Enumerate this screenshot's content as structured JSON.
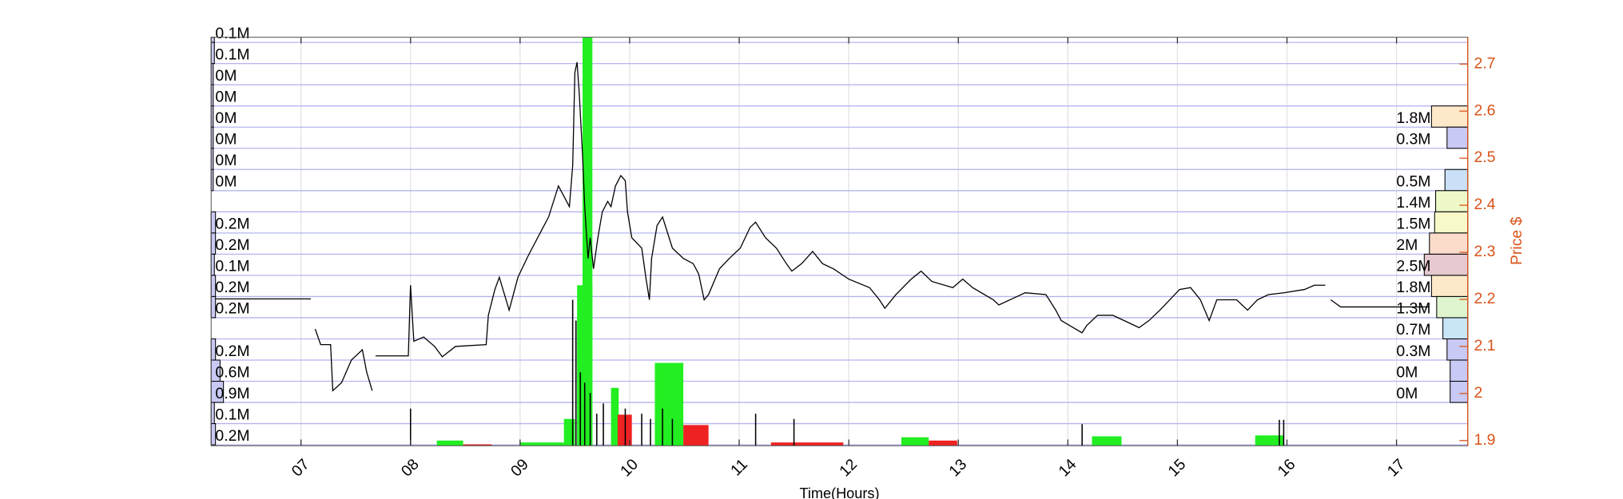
{
  "chart_data": {
    "type": "line",
    "xlabel": "Time(Hours)",
    "ylabel": "Price $",
    "xlim": [
      6.18,
      17.65
    ],
    "xticks": [
      {
        "value": 7,
        "label": "07"
      },
      {
        "value": 8,
        "label": "08"
      },
      {
        "value": 9,
        "label": "09"
      },
      {
        "value": 10,
        "label": "10"
      },
      {
        "value": 11,
        "label": "11"
      },
      {
        "value": 12,
        "label": "12"
      },
      {
        "value": 13,
        "label": "13"
      },
      {
        "value": 14,
        "label": "14"
      },
      {
        "value": 15,
        "label": "15"
      },
      {
        "value": 16,
        "label": "16"
      },
      {
        "value": 17,
        "label": "17"
      }
    ],
    "ylim": [
      1.889,
      2.757
    ],
    "yticks": [
      1.9,
      2,
      2.1,
      2.2,
      2.3,
      2.4,
      2.5,
      2.6,
      2.7
    ],
    "axis_color": "#d95319",
    "grid": true,
    "series": [
      {
        "name": "Price",
        "color": "#000000",
        "x": [
          6.2,
          7.09,
          7.11,
          7.13,
          7.18,
          7.27,
          7.29,
          7.37,
          7.46,
          7.56,
          7.6,
          7.65,
          7.66,
          7.68,
          7.98,
          8.0,
          8.03,
          8.12,
          8.22,
          8.29,
          8.41,
          8.69,
          8.71,
          8.77,
          8.81,
          8.9,
          8.98,
          9.07,
          9.16,
          9.26,
          9.35,
          9.4,
          9.45,
          9.48,
          9.5,
          9.52,
          9.54,
          9.57,
          9.59,
          9.62,
          9.64,
          9.67,
          9.71,
          9.75,
          9.8,
          9.83,
          9.87,
          9.92,
          9.96,
          9.98,
          10.02,
          10.11,
          10.15,
          10.18,
          10.2,
          10.25,
          10.3,
          10.39,
          10.49,
          10.58,
          10.63,
          10.68,
          10.72,
          10.82,
          10.91,
          11.01,
          11.1,
          11.15,
          11.24,
          11.34,
          11.43,
          11.48,
          11.57,
          11.67,
          11.76,
          11.86,
          12.0,
          12.19,
          12.28,
          12.33,
          12.43,
          12.57,
          12.66,
          12.76,
          12.95,
          13.04,
          13.13,
          13.32,
          13.37,
          13.61,
          13.8,
          13.89,
          13.94,
          14.13,
          14.17,
          14.27,
          14.41,
          14.55,
          14.65,
          14.74,
          14.84,
          15.02,
          15.12,
          15.21,
          15.29,
          15.36,
          15.54,
          15.64,
          15.73,
          15.83,
          15.97,
          16.16,
          16.25,
          16.35,
          16.37,
          16.4,
          16.49,
          17.29
        ],
        "values": [
          2.201,
          2.201,
          null,
          2.137,
          2.104,
          2.104,
          2.006,
          2.023,
          2.071,
          2.093,
          2.045,
          2.006,
          null,
          2.08,
          2.08,
          2.23,
          2.111,
          2.12,
          2.1,
          2.078,
          2.1,
          2.104,
          2.166,
          2.221,
          2.247,
          2.177,
          2.247,
          2.291,
          2.331,
          2.375,
          2.441,
          2.419,
          2.397,
          2.485,
          2.682,
          2.704,
          2.638,
          2.507,
          2.397,
          2.287,
          2.331,
          2.265,
          2.331,
          2.386,
          2.408,
          2.397,
          2.441,
          2.463,
          2.452,
          2.386,
          2.331,
          2.309,
          2.243,
          2.199,
          2.287,
          2.357,
          2.375,
          2.309,
          2.287,
          2.276,
          2.254,
          2.199,
          2.21,
          2.265,
          2.287,
          2.309,
          2.353,
          2.364,
          2.331,
          2.309,
          2.276,
          2.26,
          2.276,
          2.302,
          2.276,
          2.265,
          2.243,
          2.225,
          2.199,
          2.181,
          2.21,
          2.243,
          2.26,
          2.238,
          2.225,
          2.243,
          2.225,
          2.199,
          2.188,
          2.214,
          2.21,
          2.177,
          2.155,
          2.129,
          2.144,
          2.166,
          2.166,
          2.151,
          2.14,
          2.155,
          2.177,
          2.221,
          2.225,
          2.199,
          2.155,
          2.199,
          2.199,
          2.177,
          2.199,
          2.21,
          2.214,
          2.221,
          2.23,
          2.23,
          null,
          2.199,
          2.184,
          2.184
        ]
      }
    ],
    "volume_bars": {
      "x0": [
        8.24,
        9.0,
        9.4,
        9.52,
        9.57,
        9.83,
        10.23,
        12.48,
        14.22,
        15.71,
        8.48,
        9.89,
        10.49,
        11.29,
        12.73
      ],
      "x1": [
        8.48,
        9.4,
        9.5,
        9.66,
        9.66,
        9.9,
        10.49,
        12.73,
        14.49,
        15.97,
        8.74,
        10.02,
        10.72,
        11.95,
        12.99
      ],
      "values": [
        1.9,
        1.896,
        1.946,
        2.23,
        2.757,
        2.012,
        2.065,
        1.907,
        1.909,
        1.911,
        1.892,
        1.955,
        1.933,
        1.896,
        1.9
      ],
      "colors": [
        "#22ee22",
        "#22ee22",
        "#22ee22",
        "#22ee22",
        "#22ee22",
        "#22ee22",
        "#22ee22",
        "#22ee22",
        "#22ee22",
        "#22ee22",
        "#ee2222",
        "#ee2222",
        "#ee2222",
        "#ee2222",
        "#ee2222"
      ]
    },
    "volume_spikes": {
      "color": "#000000",
      "x": [
        8.0,
        9.48,
        9.51,
        9.55,
        9.59,
        9.64,
        9.7,
        9.76,
        9.96,
        10.11,
        10.19,
        10.3,
        10.39,
        11.15,
        11.5,
        14.13,
        15.93,
        15.97
      ],
      "values": [
        1.968,
        2.199,
        2.155,
        2.045,
        2.023,
        2.001,
        1.957,
        1.979,
        1.968,
        1.957,
        1.946,
        1.968,
        1.946,
        1.957,
        1.946,
        1.935,
        1.944,
        1.944
      ]
    },
    "profile_levels": [
      2.746,
      2.701,
      2.656,
      2.611,
      2.566,
      2.521,
      2.476,
      2.431,
      2.386,
      2.341,
      2.296,
      2.251,
      2.206,
      2.161,
      2.116,
      2.071,
      2.026,
      1.981,
      1.936,
      1.891
    ],
    "left_profile": {
      "color": "#c9c9f5",
      "values": [
        0.1,
        0.1,
        0,
        0,
        0,
        0,
        0,
        0,
        null,
        0.2,
        0.2,
        0.1,
        0.2,
        0.2,
        null,
        0.2,
        0.6,
        0.9,
        0.1,
        0.2
      ],
      "value_labels": [
        "0.1M",
        "0.1M",
        "0M",
        "0M",
        "0M",
        "0M",
        "0M",
        "0M",
        null,
        "0.2M",
        "0.2M",
        "0.1M",
        "0.2M",
        "0.2M",
        null,
        "0.2M",
        "0.6M",
        "0.9M",
        "0.1M",
        "0.2M"
      ]
    },
    "right_profile": {
      "values": [
        null,
        null,
        null,
        null,
        1.8,
        0.3,
        null,
        0.5,
        1.4,
        1.5,
        2,
        2.5,
        1.8,
        1.3,
        0.7,
        0.3,
        0,
        0,
        null,
        null
      ],
      "value_labels": [
        null,
        null,
        null,
        null,
        "1.8M",
        "0.3M",
        null,
        "0.5M",
        "1.4M",
        "1.5M",
        "2M",
        "2.5M",
        "1.8M",
        "1.3M",
        "0.7M",
        "0.3M",
        "0M",
        "0M",
        null,
        null
      ],
      "colors": [
        null,
        null,
        null,
        null,
        "#fde9c9",
        "#c9c9f5",
        null,
        "#c9e0f7",
        "#eef9c9",
        "#f7f9c9",
        "#fbdccb",
        "#e6c9d0",
        "#fde9c9",
        "#dff5d0",
        "#c9e6f7",
        "#c9c9f5",
        "#c9c9f5",
        "#c9c9f5",
        null,
        null
      ]
    }
  }
}
